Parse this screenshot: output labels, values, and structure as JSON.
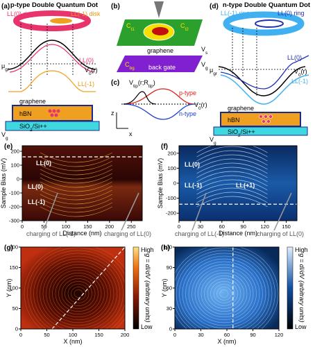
{
  "panel_a": {
    "label": "(a)",
    "title": "p-type Double Quantum Dot",
    "ring": "LL(0) ring",
    "disk": "LL(-1) disk",
    "mu": [
      "μ",
      "gr"
    ],
    "ll0": "LL(0)",
    "v0": [
      "V",
      "0",
      "(r)"
    ],
    "llm1": "LL(-1)",
    "graphene": "graphene",
    "hbn": "hBN",
    "sio2": [
      "SiO",
      "2",
      "/Si++"
    ],
    "vg": [
      "V",
      "g"
    ]
  },
  "panel_b": {
    "label": "(b)",
    "ct1": [
      "C",
      "t1"
    ],
    "ct2": [
      "C",
      "t2"
    ],
    "graphene": "graphene",
    "vs": [
      "V",
      "s"
    ],
    "cbg": [
      "C",
      "bg"
    ],
    "back_gate": "back gate",
    "vg": [
      "V",
      "g"
    ]
  },
  "panel_c": {
    "label": "(c)",
    "vtip": [
      "V",
      "tip",
      "(r;R",
      "tip",
      ")"
    ],
    "ptype": "p-type",
    "ntype": "n-type",
    "v0": [
      "V",
      "0",
      "(r)"
    ],
    "z": "z",
    "x": "x"
  },
  "panel_d": {
    "label": "(d)",
    "title": "n-type Double Quantum Dot",
    "ring_m1": "LL(-1) ring",
    "ring_0": "LL(0) ring",
    "ll0": "LL(0)",
    "llm1": "LL(-1)",
    "mu": [
      "μ",
      "gr"
    ],
    "v0": [
      "V",
      "0",
      "(r)"
    ],
    "graphene": "graphene",
    "hbn": "hBN",
    "sio2": [
      "SiO",
      "2",
      "/Si++"
    ],
    "vg": [
      "V",
      "g"
    ]
  },
  "panel_e": {
    "label": "(e)",
    "ylabel": "Sample Bias (mV)",
    "xlabel": "Distance (nm)",
    "xlim": [
      0,
      275
    ],
    "ylim": [
      -300,
      240
    ],
    "xticks": [
      0,
      50,
      100,
      150,
      200,
      250
    ],
    "yticks": [
      -300,
      -200,
      -100,
      0,
      100,
      200
    ],
    "hlines": [
      160
    ],
    "annotations": [
      "LL(0)",
      "LL(0)",
      "LL(-1)",
      "charging of LL(-1)",
      "charging of LL(0)"
    ]
  },
  "panel_f": {
    "label": "(f)",
    "ylabel": "Sample Bias (mV)",
    "xlabel": "Distance (nm)",
    "xlim": [
      0,
      165
    ],
    "ylim": [
      -250,
      250
    ],
    "xticks": [
      0,
      30,
      60,
      90,
      120,
      150
    ],
    "yticks": [
      -200,
      -100,
      0,
      100,
      200
    ],
    "hlines": [
      -140
    ],
    "annotations": [
      "LL(0)",
      "LL(-1)",
      "LL(+1)",
      "charging of LL(-1)",
      "charging of LL(0)"
    ]
  },
  "panel_g": {
    "label": "(g)",
    "ylabel": "Y (nm)",
    "xlabel": "X (nm)",
    "xlim": [
      0,
      200
    ],
    "ylim": [
      0,
      200
    ],
    "xticks": [
      0,
      50,
      100,
      150,
      200
    ],
    "yticks": [
      0,
      50,
      100,
      150,
      200
    ],
    "colorbar": {
      "high": "High",
      "low": "Low",
      "label": "g = dI/dV (arbitrary units)"
    }
  },
  "panel_h": {
    "label": "(h)",
    "ylabel": "Y (nm)",
    "xlabel": "X (nm)",
    "xlim": [
      0,
      120
    ],
    "ylim": [
      0,
      120
    ],
    "xticks": [
      0,
      30,
      60,
      90,
      120
    ],
    "yticks": [
      0,
      30,
      60,
      90,
      120
    ],
    "vline": 67,
    "colorbar": {
      "high": "High",
      "low": "Low",
      "label": "g = dI/dV (arbitrary units)"
    }
  }
}
